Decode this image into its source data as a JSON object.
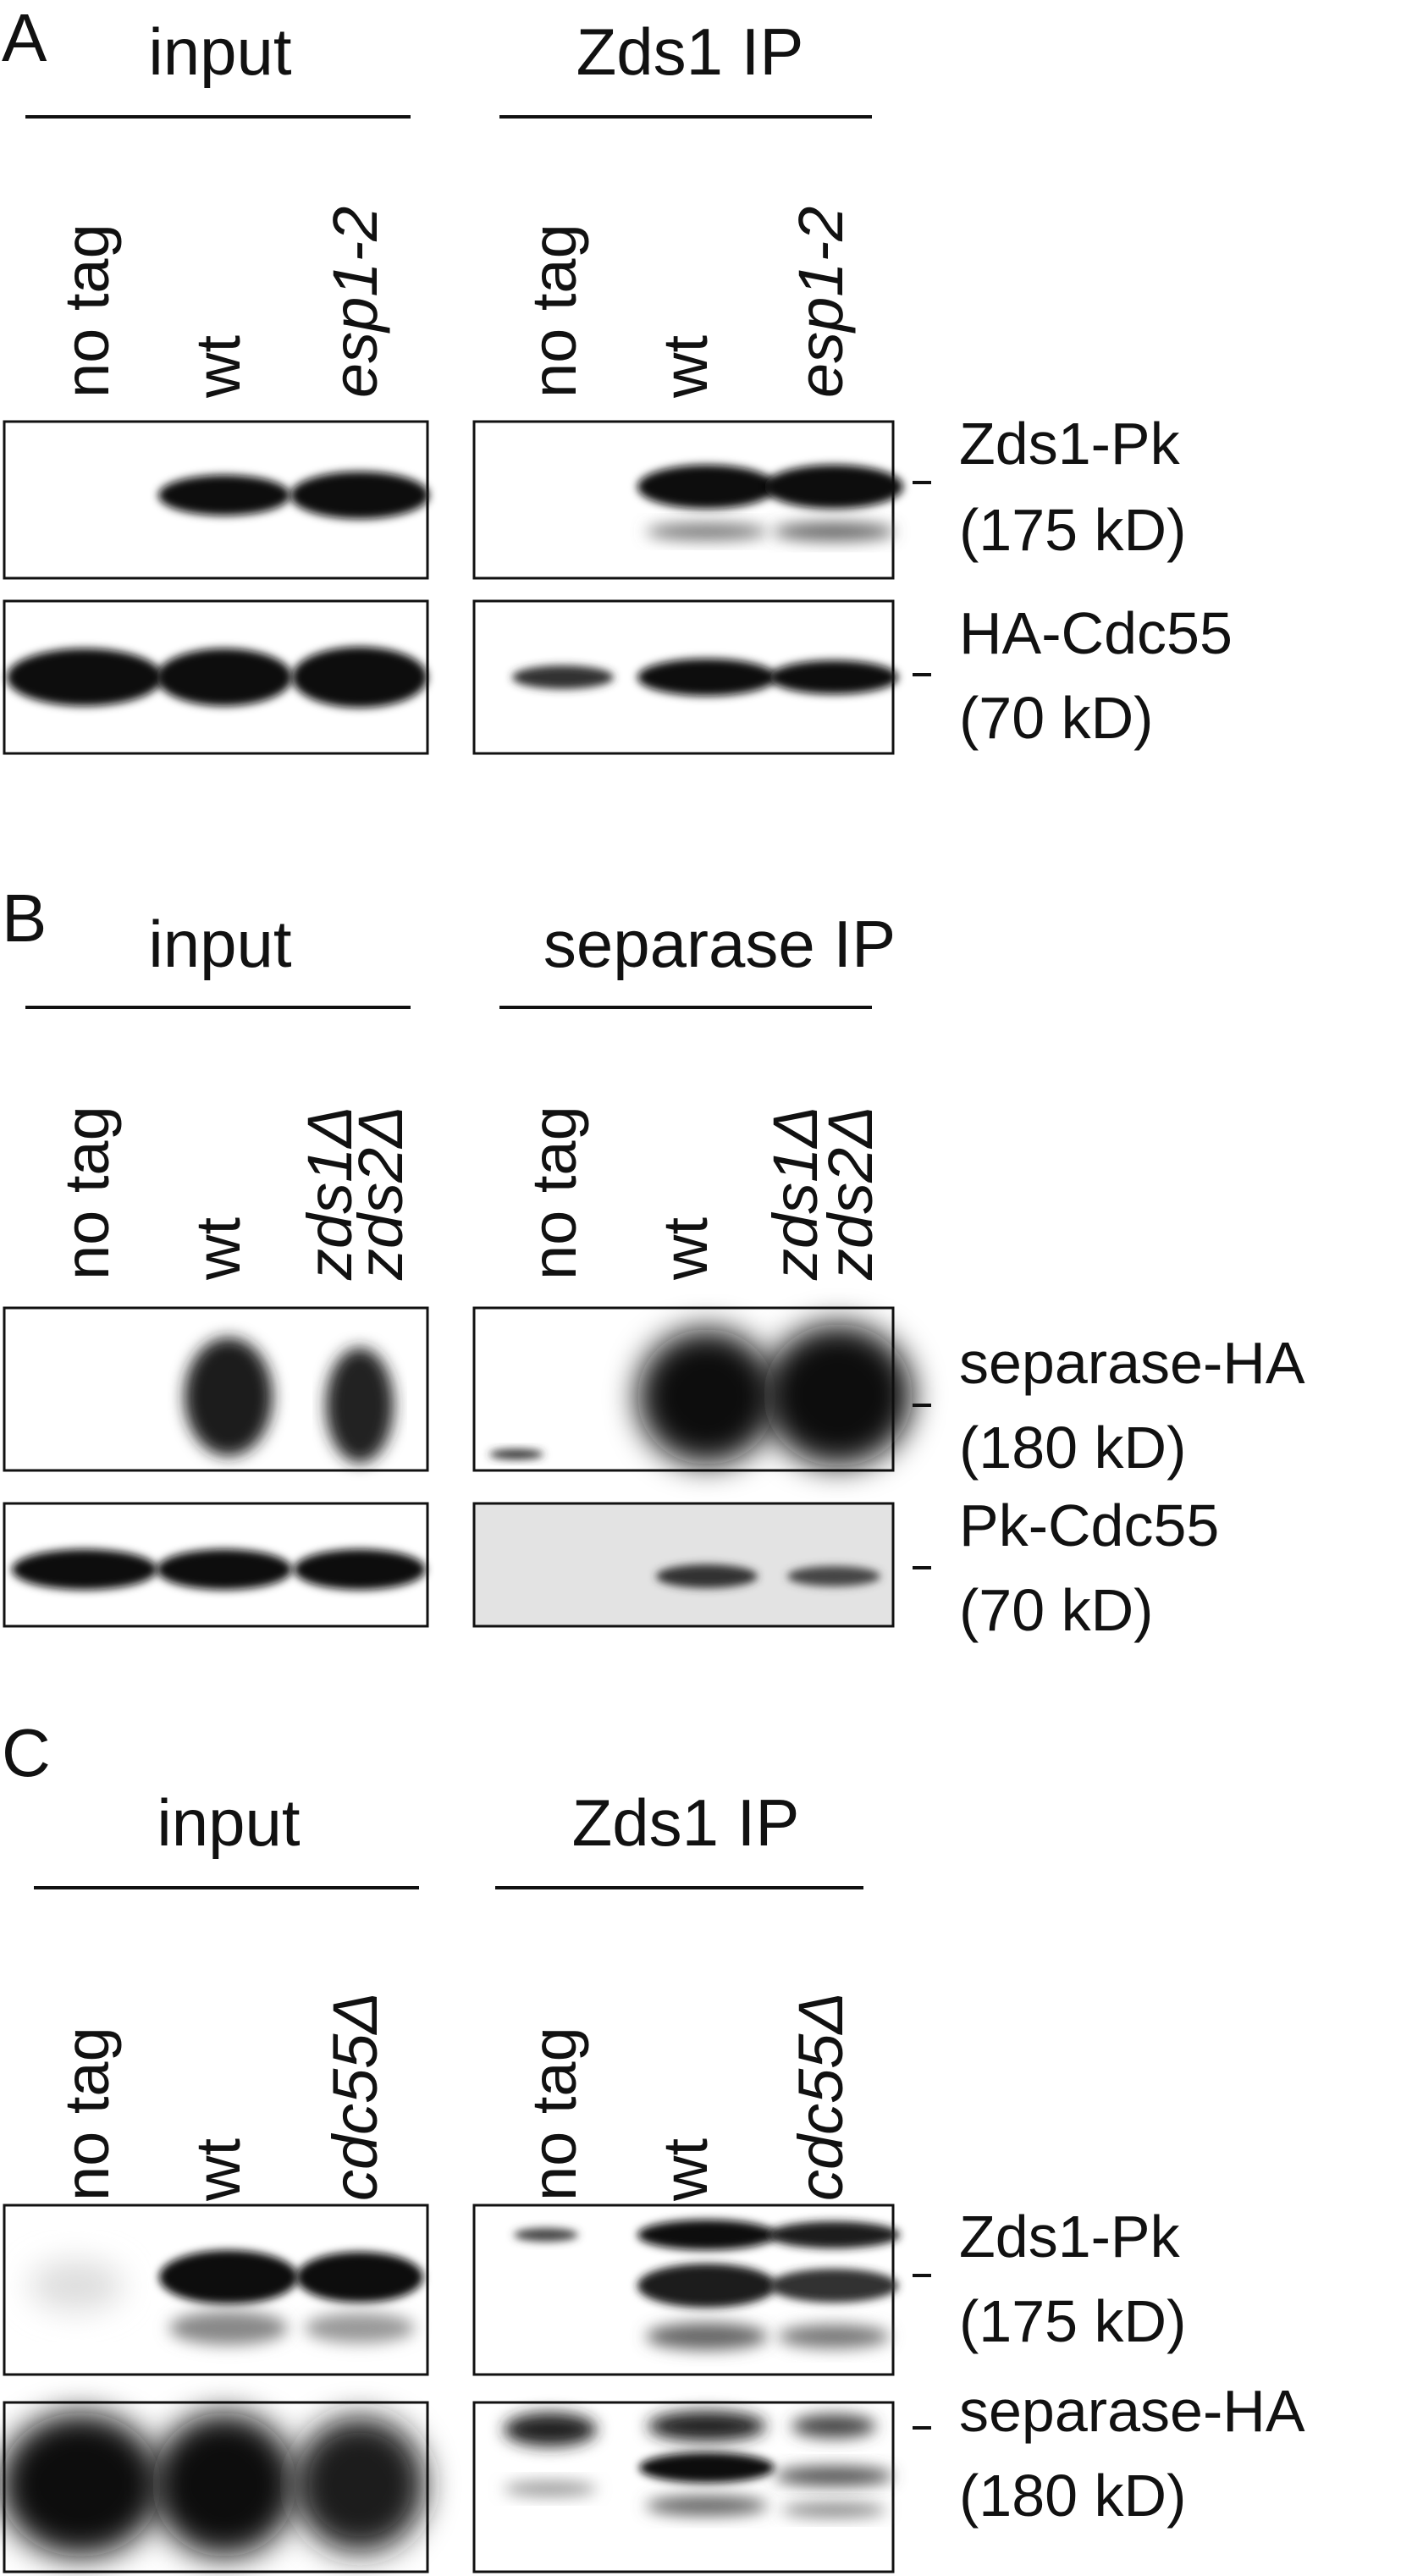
{
  "panels": [
    {
      "letter": "A",
      "groups": [
        {
          "header": "input",
          "lanes": [
            {
              "text": "no tag",
              "italic": false
            },
            {
              "text": "wt",
              "italic": false
            },
            {
              "text": "esp1-2",
              "italic": true
            }
          ]
        },
        {
          "header": "Zds1 IP",
          "lanes": [
            {
              "text": "no tag",
              "italic": false
            },
            {
              "text": "wt",
              "italic": false
            },
            {
              "text": "esp1-2",
              "italic": true
            }
          ]
        }
      ],
      "blots": [
        {
          "name": "Zds1-Pk",
          "size": "(175 kD)"
        },
        {
          "name": "HA-Cdc55",
          "size": "(70 kD)"
        }
      ]
    },
    {
      "letter": "B",
      "groups": [
        {
          "header": "input",
          "lanes": [
            {
              "text": "no tag",
              "italic": false
            },
            {
              "text": "wt",
              "italic": false
            },
            {
              "text": "zds1Δ",
              "text2": "zds2Δ",
              "italic": true
            }
          ]
        },
        {
          "header": "separase IP",
          "lanes": [
            {
              "text": "no tag",
              "italic": false
            },
            {
              "text": "wt",
              "italic": false
            },
            {
              "text": "zds1Δ",
              "text2": "zds2Δ",
              "italic": true
            }
          ]
        }
      ],
      "blots": [
        {
          "name": "separase-HA",
          "size": "(180 kD)"
        },
        {
          "name": "Pk-Cdc55",
          "size": "(70 kD)"
        }
      ]
    },
    {
      "letter": "C",
      "groups": [
        {
          "header": "input",
          "lanes": [
            {
              "text": "no tag",
              "italic": false
            },
            {
              "text": "wt",
              "italic": false
            },
            {
              "text": "cdc55Δ",
              "italic": true
            }
          ]
        },
        {
          "header": "Zds1 IP",
          "lanes": [
            {
              "text": "no tag",
              "italic": false
            },
            {
              "text": "wt",
              "italic": false
            },
            {
              "text": "cdc55Δ",
              "italic": true
            }
          ]
        }
      ],
      "blots": [
        {
          "name": "Zds1-Pk",
          "size": "(175 kD)"
        },
        {
          "name": "separase-HA",
          "size": "(180 kD)"
        }
      ]
    }
  ],
  "colors": {
    "ink": "#111111",
    "band": "#0d0d0d",
    "background": "#ffffff"
  }
}
